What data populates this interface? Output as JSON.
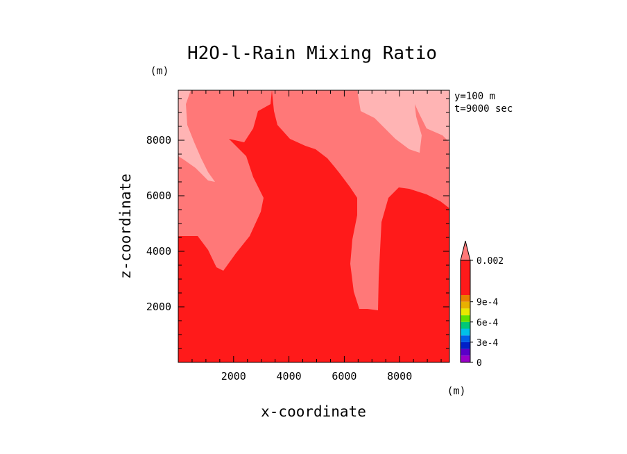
{
  "chart_data": {
    "type": "heatmap",
    "title": "H2O-l-Rain Mixing Ratio",
    "xlabel": "x-coordinate",
    "ylabel": "z-coordinate",
    "x_unit": "(m)",
    "y_unit": "(m)",
    "xlim": [
      0,
      9800
    ],
    "ylim": [
      0,
      9800
    ],
    "x_ticks": [
      2000,
      4000,
      6000,
      8000
    ],
    "y_ticks": [
      2000,
      4000,
      6000,
      8000
    ],
    "annotations": [
      "y=100 m",
      "t=9000 sec"
    ],
    "colorbar": {
      "levels": [
        0,
        0.0001,
        0.0002,
        0.0003,
        0.0004,
        0.0005,
        0.0006,
        0.0007,
        0.0008,
        0.0009,
        0.001,
        0.002
      ],
      "colors": [
        "#9a00c8",
        "#5a00c8",
        "#0020c8",
        "#0060e8",
        "#00c0e8",
        "#00c878",
        "#60e000",
        "#e8e800",
        "#e8b000",
        "#e88000",
        "#ff1a1a",
        "#ff7878",
        "#ffb4b4"
      ],
      "tick_labels": [
        "0",
        "3e-4",
        "6e-4",
        "9e-4",
        "0.002"
      ],
      "extend": "max"
    },
    "fields": {
      "low_value_color": "#ff1a1a",
      "mid_value_color": "#ff7878",
      "high_value_color": "#ffb4b4"
    }
  }
}
